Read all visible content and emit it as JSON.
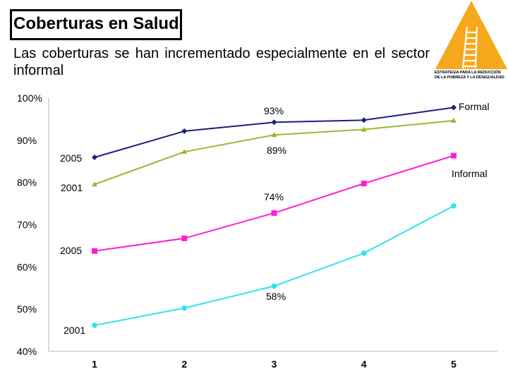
{
  "header": {
    "title": "Coberturas en Salud",
    "subtitle": "Las coberturas se han incrementado especialmente en el sector informal"
  },
  "logo": {
    "icon": "ladder-triangle-icon",
    "line1": "ESTRATEGIA PARA LA REDUCCIÓN",
    "line2": "DE LA POBREZA Y LA DESIGUALDAD",
    "colors": {
      "triangle": "#f6a81c",
      "ladder": "#ffffff"
    }
  },
  "chart_data": {
    "type": "line",
    "x": [
      1,
      2,
      3,
      4,
      5
    ],
    "tick_labels": [
      "1",
      "2",
      "3",
      "4",
      "5"
    ],
    "y_ticks": [
      40,
      50,
      60,
      70,
      80,
      90,
      100
    ],
    "y_tick_labels": [
      "40%",
      "50%",
      "60%",
      "70%",
      "80%",
      "90%",
      "100%"
    ],
    "ylim": [
      40,
      100
    ],
    "grid": false,
    "series": [
      {
        "name": "Formal 2005",
        "color": "#1a1f80",
        "marker": "diamond",
        "values": [
          85.8,
          92.0,
          94.1,
          94.6,
          97.6
        ]
      },
      {
        "name": "Formal 2001",
        "color": "#99b82e",
        "marker": "triangle",
        "values": [
          79.4,
          87.1,
          91.1,
          92.4,
          94.5
        ]
      },
      {
        "name": "Informal 2005",
        "color": "#ff1ecf",
        "marker": "square",
        "values": [
          63.6,
          66.6,
          72.6,
          79.6,
          86.2
        ]
      },
      {
        "name": "Informal 2001",
        "color": "#33e3ec",
        "marker": "circle",
        "values": [
          46.0,
          50.1,
          55.3,
          63.1,
          74.3
        ]
      }
    ],
    "labels": {
      "formal": "Formal",
      "informal": "Informal",
      "formal_2005": "2005",
      "formal_2001": "2001",
      "informal_2005": "2005",
      "informal_2001": "2001",
      "value_93": "93%",
      "value_89": "89%",
      "value_74": "74%",
      "value_58": "58%"
    }
  }
}
